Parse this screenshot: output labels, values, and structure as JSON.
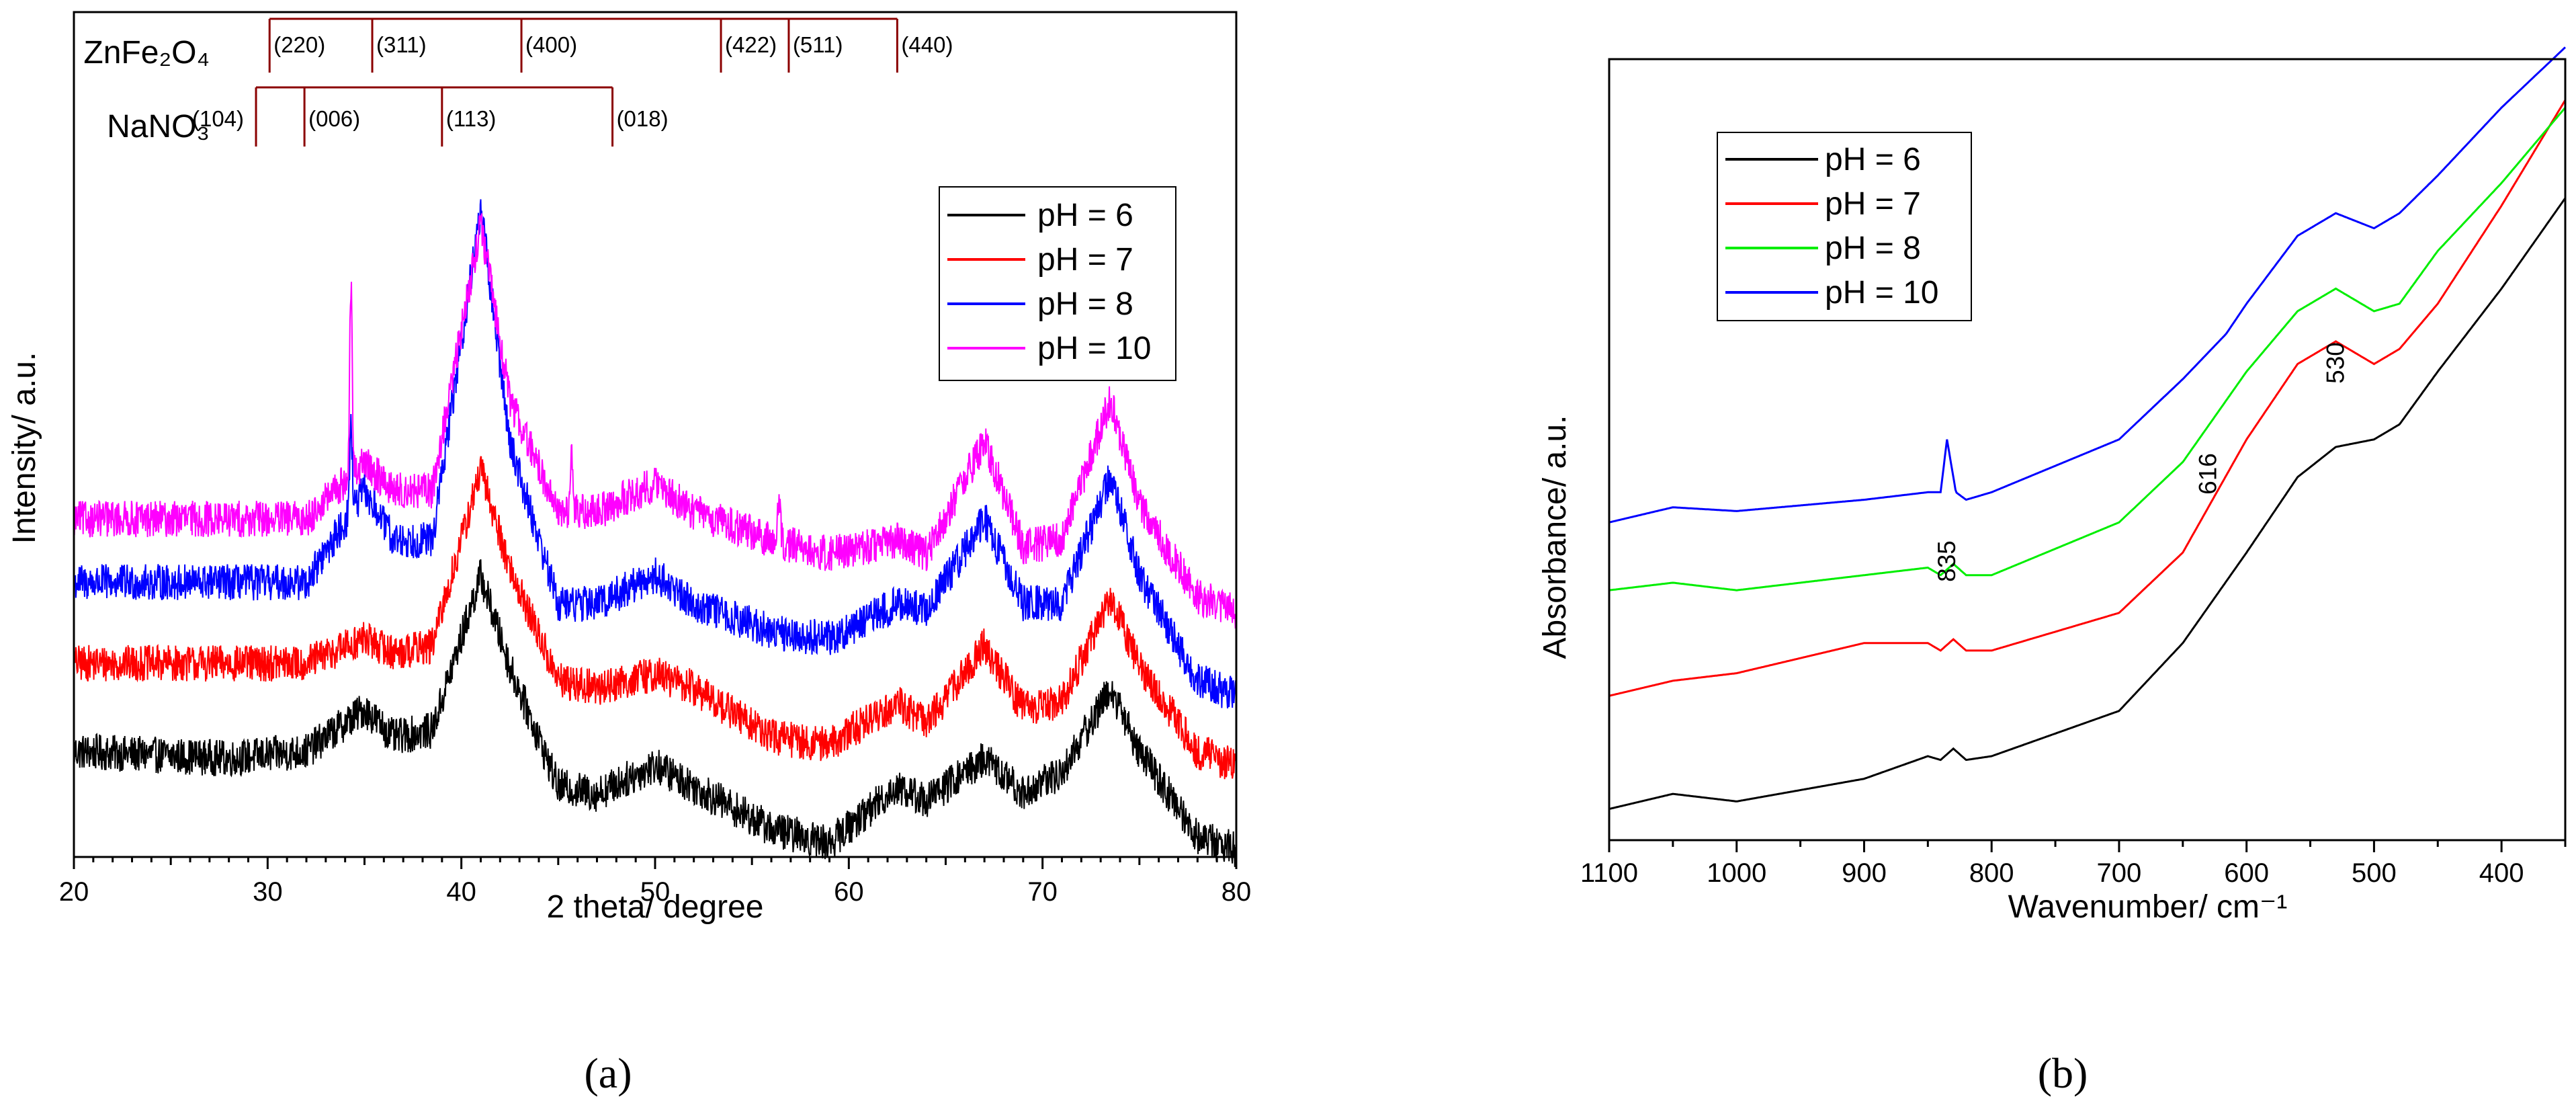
{
  "chart_data": [
    {
      "panel": "(a)",
      "type": "line",
      "xlabel": "2 theta/ degree",
      "ylabel": "Intensity/ a.u.",
      "xlim": [
        20,
        80
      ],
      "ylim": [
        0,
        12
      ],
      "xticks": [
        20,
        30,
        40,
        50,
        60,
        70,
        80
      ],
      "y_axis_numbered": false,
      "legend": {
        "placement": "top-right",
        "entries": [
          "pH = 6",
          "pH = 7",
          "pH = 8",
          "pH = 10"
        ]
      },
      "series": [
        {
          "name": "pH = 6",
          "color": "#000000",
          "noise": 0.26,
          "points": [
            [
              20,
              1.5
            ],
            [
              28,
              1.4
            ],
            [
              32,
              1.5
            ],
            [
              35,
              2.1
            ],
            [
              36.5,
              1.7
            ],
            [
              38.5,
              1.8
            ],
            [
              41,
              4.0
            ],
            [
              42.5,
              2.7
            ],
            [
              45,
              1.0
            ],
            [
              47,
              0.9
            ],
            [
              50,
              1.3
            ],
            [
              52,
              1.0
            ],
            [
              56,
              0.4
            ],
            [
              59,
              0.2
            ],
            [
              62.5,
              1.0
            ],
            [
              64,
              0.8
            ],
            [
              67,
              1.4
            ],
            [
              69,
              0.9
            ],
            [
              71,
              1.2
            ],
            [
              73.5,
              2.4
            ],
            [
              75,
              1.5
            ],
            [
              78,
              0.3
            ],
            [
              80,
              0.1
            ]
          ]
        },
        {
          "name": "pH = 7",
          "color": "#ff0000",
          "noise": 0.26,
          "points": [
            [
              20,
              2.75
            ],
            [
              28,
              2.75
            ],
            [
              32,
              2.75
            ],
            [
              35,
              3.1
            ],
            [
              36.5,
              2.9
            ],
            [
              38.5,
              3.0
            ],
            [
              41,
              5.5
            ],
            [
              42.5,
              4.1
            ],
            [
              45,
              2.5
            ],
            [
              47,
              2.4
            ],
            [
              50,
              2.6
            ],
            [
              52,
              2.4
            ],
            [
              56,
              1.7
            ],
            [
              59,
              1.6
            ],
            [
              62.5,
              2.2
            ],
            [
              64,
              1.9
            ],
            [
              67,
              3.0
            ],
            [
              69,
              2.1
            ],
            [
              71,
              2.2
            ],
            [
              73.5,
              3.7
            ],
            [
              75,
              2.7
            ],
            [
              78,
              1.5
            ],
            [
              80,
              1.3
            ]
          ]
        },
        {
          "name": "pH = 8",
          "color": "#0000ff",
          "noise": 0.26,
          "points": [
            [
              20,
              3.9
            ],
            [
              28,
              3.9
            ],
            [
              32,
              3.9
            ],
            [
              35,
              5.2
            ],
            [
              36.5,
              4.5
            ],
            [
              38.5,
              4.5
            ],
            [
              41,
              9.2
            ],
            [
              42.5,
              5.9
            ],
            [
              45,
              3.6
            ],
            [
              47,
              3.6
            ],
            [
              50,
              4.0
            ],
            [
              52,
              3.6
            ],
            [
              56,
              3.2
            ],
            [
              59,
              3.1
            ],
            [
              62.5,
              3.6
            ],
            [
              64,
              3.5
            ],
            [
              67,
              4.8
            ],
            [
              69,
              3.6
            ],
            [
              71,
              3.6
            ],
            [
              73.5,
              5.4
            ],
            [
              75,
              4.0
            ],
            [
              78,
              2.5
            ],
            [
              80,
              2.3
            ]
          ]
        },
        {
          "name": "pH = 10",
          "color": "#ff00ff",
          "noise": 0.26,
          "points": [
            [
              20,
              4.8
            ],
            [
              28,
              4.8
            ],
            [
              32,
              4.8
            ],
            [
              35,
              5.6
            ],
            [
              36.5,
              5.2
            ],
            [
              38.5,
              5.2
            ],
            [
              41,
              9.0
            ],
            [
              42.5,
              6.5
            ],
            [
              45,
              4.9
            ],
            [
              47,
              4.9
            ],
            [
              50,
              5.3
            ],
            [
              52,
              4.9
            ],
            [
              56,
              4.5
            ],
            [
              59,
              4.3
            ],
            [
              62.5,
              4.5
            ],
            [
              64,
              4.3
            ],
            [
              67,
              5.9
            ],
            [
              69,
              4.4
            ],
            [
              71,
              4.5
            ],
            [
              73.5,
              6.5
            ],
            [
              75,
              5.0
            ],
            [
              78,
              3.7
            ],
            [
              80,
              3.5
            ]
          ]
        }
      ],
      "sharp_peaks": [
        {
          "series": "pH = 10",
          "x": 34.3,
          "height": 2.7
        },
        {
          "series": "pH = 8",
          "x": 34.3,
          "height": 1.3
        },
        {
          "series": "pH = 10",
          "x": 45.7,
          "height": 0.9
        },
        {
          "series": "pH = 10",
          "x": 56.4,
          "height": 0.6
        }
      ],
      "reference_patterns": [
        {
          "phase": "ZnFe₂O₄",
          "peaks": [
            {
              "x": 30.1,
              "hkl": "(220)"
            },
            {
              "x": 35.4,
              "hkl": "(311)"
            },
            {
              "x": 43.1,
              "hkl": "(400)"
            },
            {
              "x": 53.4,
              "hkl": "(422)"
            },
            {
              "x": 56.9,
              "hkl": "(511)"
            },
            {
              "x": 62.5,
              "hkl": "(440)"
            }
          ]
        },
        {
          "phase": "NaNO₃",
          "peaks": [
            {
              "x": 29.4,
              "hkl": "(104)"
            },
            {
              "x": 31.9,
              "hkl": "(006)"
            },
            {
              "x": 39.0,
              "hkl": "(113)"
            },
            {
              "x": 47.8,
              "hkl": "(018)"
            }
          ]
        }
      ]
    },
    {
      "panel": "(b)",
      "type": "line",
      "xlabel": "Wavenumber/ cm⁻¹",
      "ylabel": "Absorbance/ a.u.",
      "xlim": [
        1100,
        350
      ],
      "ylim": [
        0,
        10
      ],
      "xticks": [
        1100,
        1000,
        900,
        800,
        700,
        600,
        500,
        400
      ],
      "y_axis_numbered": false,
      "legend": {
        "placement": "top-left",
        "entries": [
          "pH = 6",
          "pH = 7",
          "pH = 8",
          "pH = 10"
        ]
      },
      "series": [
        {
          "name": "pH = 6",
          "color": "#000000",
          "points": [
            [
              1100,
              0.2
            ],
            [
              1050,
              0.4
            ],
            [
              1000,
              0.3
            ],
            [
              900,
              0.6
            ],
            [
              850,
              0.9
            ],
            [
              840,
              0.85
            ],
            [
              830,
              1.0
            ],
            [
              820,
              0.85
            ],
            [
              800,
              0.9
            ],
            [
              700,
              1.5
            ],
            [
              650,
              2.4
            ],
            [
              600,
              3.6
            ],
            [
              560,
              4.6
            ],
            [
              530,
              5.0
            ],
            [
              500,
              5.1
            ],
            [
              480,
              5.3
            ],
            [
              450,
              6.0
            ],
            [
              400,
              7.1
            ],
            [
              350,
              8.3
            ]
          ]
        },
        {
          "name": "pH = 7",
          "color": "#ff0000",
          "points": [
            [
              1100,
              1.7
            ],
            [
              1050,
              1.9
            ],
            [
              1000,
              2.0
            ],
            [
              900,
              2.4
            ],
            [
              850,
              2.4
            ],
            [
              840,
              2.3
            ],
            [
              830,
              2.45
            ],
            [
              820,
              2.3
            ],
            [
              800,
              2.3
            ],
            [
              700,
              2.8
            ],
            [
              650,
              3.6
            ],
            [
              600,
              5.1
            ],
            [
              560,
              6.1
            ],
            [
              530,
              6.4
            ],
            [
              500,
              6.1
            ],
            [
              480,
              6.3
            ],
            [
              450,
              6.9
            ],
            [
              400,
              8.2
            ],
            [
              350,
              9.6
            ]
          ]
        },
        {
          "name": "pH = 8",
          "color": "#00ee00",
          "points": [
            [
              1100,
              3.1
            ],
            [
              1050,
              3.2
            ],
            [
              1000,
              3.1
            ],
            [
              900,
              3.3
            ],
            [
              850,
              3.4
            ],
            [
              840,
              3.3
            ],
            [
              830,
              3.45
            ],
            [
              820,
              3.3
            ],
            [
              800,
              3.3
            ],
            [
              700,
              4.0
            ],
            [
              650,
              4.8
            ],
            [
              600,
              6.0
            ],
            [
              560,
              6.8
            ],
            [
              530,
              7.1
            ],
            [
              500,
              6.8
            ],
            [
              480,
              6.9
            ],
            [
              450,
              7.6
            ],
            [
              400,
              8.5
            ],
            [
              350,
              9.5
            ]
          ]
        },
        {
          "name": "pH = 10",
          "color": "#0000ff",
          "points": [
            [
              1100,
              4.0
            ],
            [
              1050,
              4.2
            ],
            [
              1000,
              4.15
            ],
            [
              900,
              4.3
            ],
            [
              850,
              4.4
            ],
            [
              840,
              4.4
            ],
            [
              835,
              5.1
            ],
            [
              828,
              4.4
            ],
            [
              820,
              4.3
            ],
            [
              800,
              4.4
            ],
            [
              700,
              5.1
            ],
            [
              650,
              5.9
            ],
            [
              616,
              6.5
            ],
            [
              600,
              6.9
            ],
            [
              560,
              7.8
            ],
            [
              530,
              8.1
            ],
            [
              500,
              7.9
            ],
            [
              480,
              8.1
            ],
            [
              450,
              8.6
            ],
            [
              400,
              9.5
            ],
            [
              350,
              10.3
            ]
          ]
        }
      ],
      "annotations": [
        {
          "text": "835",
          "x": 835
        },
        {
          "text": "616",
          "x": 630
        },
        {
          "text": "530",
          "x": 530
        }
      ]
    }
  ],
  "panel_labels": {
    "a": "(a)",
    "b": "(b)"
  }
}
